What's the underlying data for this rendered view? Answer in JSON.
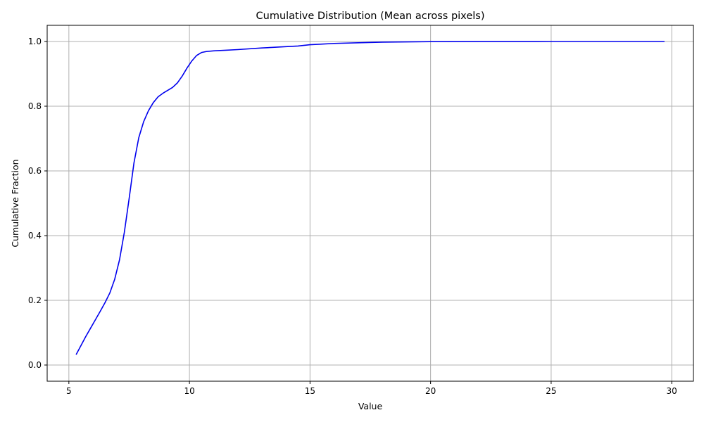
{
  "chart_data": {
    "type": "line",
    "title": "Cumulative Distribution (Mean across pixels)",
    "xlabel": "Value",
    "ylabel": "Cumulative Fraction",
    "xlim": [
      4.1,
      30.9
    ],
    "ylim": [
      -0.05,
      1.05
    ],
    "xticks": [
      5,
      10,
      15,
      20,
      25,
      30
    ],
    "yticks": [
      0.0,
      0.2,
      0.4,
      0.6,
      0.8,
      1.0
    ],
    "xtick_labels": [
      "5",
      "10",
      "15",
      "20",
      "25",
      "30"
    ],
    "ytick_labels": [
      "0.0",
      "0.2",
      "0.4",
      "0.6",
      "0.8",
      "1.0"
    ],
    "grid": true,
    "line_color": "#0000ee",
    "series": [
      {
        "x": [
          5.3,
          5.5,
          5.7,
          5.9,
          6.1,
          6.3,
          6.5,
          6.7,
          6.9,
          7.1,
          7.3,
          7.5,
          7.7,
          7.9,
          8.1,
          8.3,
          8.5,
          8.7,
          8.9,
          9.1,
          9.3,
          9.5,
          9.7,
          9.9,
          10.1,
          10.3,
          10.5,
          10.7,
          11.0,
          11.5,
          12.0,
          13.0,
          14.0,
          14.5,
          15.0,
          15.5,
          16.0,
          17.0,
          18.0,
          20.0,
          22.0,
          25.0,
          28.0,
          29.7
        ],
        "y": [
          0.032,
          0.06,
          0.088,
          0.114,
          0.14,
          0.166,
          0.193,
          0.223,
          0.265,
          0.325,
          0.41,
          0.515,
          0.625,
          0.703,
          0.752,
          0.786,
          0.811,
          0.829,
          0.84,
          0.849,
          0.858,
          0.872,
          0.893,
          0.918,
          0.94,
          0.957,
          0.966,
          0.969,
          0.971,
          0.973,
          0.975,
          0.98,
          0.984,
          0.986,
          0.99,
          0.992,
          0.994,
          0.996,
          0.998,
          0.9995,
          0.9998,
          1.0,
          1.0,
          1.0
        ]
      }
    ]
  }
}
